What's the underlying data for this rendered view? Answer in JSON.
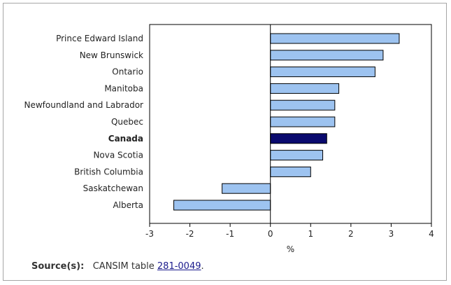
{
  "chart_data": {
    "type": "bar",
    "orientation": "horizontal",
    "categories": [
      "Prince Edward Island",
      "New Brunswick",
      "Ontario",
      "Manitoba",
      "Newfoundland and Labrador",
      "Quebec",
      "Canada",
      "Nova Scotia",
      "British Columbia",
      "Saskatchewan",
      "Alberta"
    ],
    "values": [
      3.2,
      2.8,
      2.6,
      1.7,
      1.6,
      1.6,
      1.4,
      1.3,
      1.0,
      -1.2,
      -2.4
    ],
    "highlight": "Canada",
    "xlabel": "%",
    "xlim": [
      -3,
      4
    ],
    "xticks": [
      "-3",
      "-2",
      "-1",
      "0",
      "1",
      "2",
      "3",
      "4"
    ],
    "grid": false,
    "colors": {
      "bar": "#9dc3f0",
      "highlight": "#0a0a6e",
      "bar_stroke": "#000000"
    }
  },
  "footer": {
    "source_label": "Source(s):",
    "source_text": "CANSIM table ",
    "source_link": "281-0049",
    "source_end": "."
  }
}
